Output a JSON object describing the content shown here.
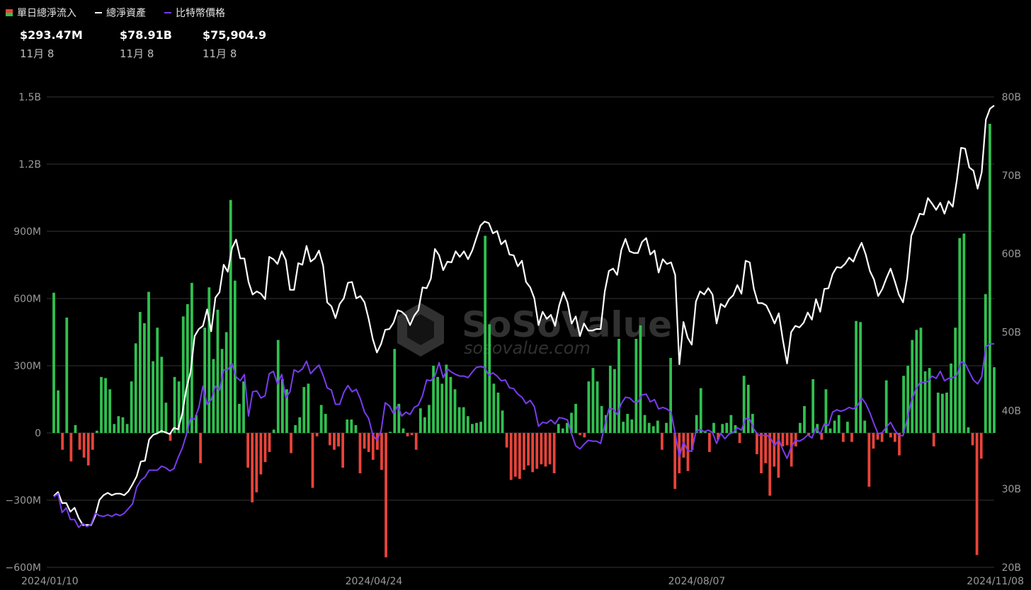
{
  "legend": [
    {
      "label": "單日總淨流入",
      "icon": "up-down-bar-icon",
      "color_up": "#31c04f",
      "color_down": "#e8443a"
    },
    {
      "label": "總淨資產",
      "icon": "line-icon",
      "color": "#ffffff"
    },
    {
      "label": "比特幣價格",
      "icon": "line-icon",
      "color": "#7a3cf0"
    }
  ],
  "stats": [
    {
      "value": "$293.47M",
      "date": "11月 8"
    },
    {
      "value": "$78.91B",
      "date": "11月 8"
    },
    {
      "value": "$75,904.9",
      "date": "11月 8"
    }
  ],
  "watermark": {
    "brand": "SoSoValue",
    "url": "sosovalue.com"
  },
  "chart_data": {
    "type": "bar",
    "colors": {
      "positive": "#31c04f",
      "negative": "#e8443a",
      "net_assets": "#ffffff",
      "btc_price": "#7a3cf0",
      "grid": "#333333"
    },
    "x_range": [
      "2024/01/10",
      "2024/11/08"
    ],
    "x_tick_labels": [
      "2024/01/10",
      "2024/04/24",
      "2024/08/07",
      "2024/11/08"
    ],
    "y_left": {
      "ticks": [
        -600,
        -300,
        0,
        300,
        600,
        900,
        1200,
        1500
      ],
      "tick_labels": [
        "−600M",
        "−300M",
        "0",
        "300M",
        "600M",
        "900M",
        "1.2B",
        "1.5B"
      ],
      "unit": "M USD",
      "range": [
        -600,
        1500
      ]
    },
    "y_right": {
      "ticks": [
        20,
        30,
        40,
        50,
        60,
        70,
        80
      ],
      "tick_labels": [
        "20B",
        "30B",
        "40B",
        "50B",
        "60B",
        "70B",
        "80B"
      ],
      "unit": "B USD",
      "range": [
        20,
        80
      ]
    },
    "grid": true,
    "legend_position": "top-left",
    "series": [
      {
        "name": "單日總淨流入",
        "type": "bar",
        "axis": "left",
        "values": [
          626,
          190,
          -75,
          515,
          -127,
          35,
          -75,
          -110,
          -145,
          -75,
          10,
          250,
          245,
          195,
          40,
          75,
          70,
          40,
          230,
          400,
          540,
          490,
          630,
          320,
          470,
          340,
          135,
          -35,
          250,
          230,
          520,
          575,
          670,
          80,
          -135,
          470,
          650,
          330,
          550,
          375,
          450,
          1040,
          680,
          130,
          230,
          -155,
          -310,
          -265,
          -185,
          -130,
          -85,
          15,
          415,
          240,
          195,
          -90,
          35,
          70,
          205,
          220,
          -245,
          -15,
          125,
          85,
          -55,
          -75,
          -60,
          -155,
          60,
          60,
          35,
          -180,
          -70,
          -85,
          -120,
          -75,
          -165,
          -555,
          5,
          375,
          130,
          20,
          -15,
          -10,
          -75,
          110,
          70,
          125,
          300,
          250,
          220,
          305,
          250,
          195,
          115,
          115,
          75,
          40,
          45,
          50,
          880,
          485,
          220,
          180,
          100,
          -65,
          -210,
          -195,
          -205,
          -165,
          -145,
          -175,
          -160,
          -140,
          -150,
          -140,
          -180,
          40,
          20,
          45,
          90,
          130,
          -10,
          -20,
          230,
          290,
          230,
          120,
          80,
          300,
          285,
          420,
          50,
          85,
          60,
          420,
          480,
          80,
          45,
          30,
          55,
          -75,
          45,
          335,
          -250,
          -180,
          -110,
          -170,
          -75,
          80,
          200,
          10,
          -85,
          45,
          -30,
          40,
          45,
          80,
          35,
          -45,
          255,
          215,
          85,
          -95,
          -180,
          -135,
          -280,
          -150,
          -200,
          -60,
          -55,
          -150,
          -60,
          45,
          120,
          -10,
          240,
          40,
          -30,
          195,
          20,
          55,
          80,
          -40,
          50,
          -40,
          500,
          495,
          55,
          -240,
          -70,
          -30,
          -40,
          235,
          -20,
          -40,
          -100,
          255,
          300,
          415,
          460,
          470,
          275,
          290,
          -60,
          180,
          175,
          180,
          310,
          470,
          870,
          890,
          25,
          -55,
          -545,
          -115,
          620,
          1380,
          293.47
        ]
      },
      {
        "name": "總淨資產",
        "type": "line",
        "axis": "right",
        "values": [
          29.1,
          29.6,
          28.2,
          28.2,
          27.1,
          27.6,
          26.3,
          25.4,
          25.4,
          25.4,
          26.6,
          28.6,
          29.2,
          29.5,
          29.2,
          29.4,
          29.4,
          29.2,
          29.7,
          30.6,
          31.6,
          33.5,
          33.6,
          36.3,
          36.9,
          37.1,
          37.4,
          37.2,
          37.0,
          37.8,
          37.6,
          39.6,
          42.8,
          44.9,
          49.5,
          50.4,
          50.8,
          52.9,
          50.1,
          54.4,
          55.1,
          58.6,
          57.7,
          60.7,
          61.8,
          59.4,
          59.4,
          56.4,
          54.8,
          55.2,
          54.9,
          54.2,
          59.6,
          59.3,
          58.7,
          60.3,
          59.2,
          55.4,
          55.4,
          58.8,
          58.6,
          61.0,
          59.0,
          59.4,
          60.4,
          58.5,
          53.8,
          53.3,
          51.8,
          53.6,
          54.3,
          56.3,
          56.4,
          54.3,
          54.6,
          53.8,
          51.7,
          49.1,
          47.4,
          48.5,
          50.3,
          50.4,
          51.2,
          52.8,
          52.6,
          52.1,
          50.9,
          52.1,
          52.8,
          55.7,
          55.6,
          56.8,
          60.6,
          59.8,
          57.9,
          59.0,
          58.9,
          60.3,
          59.6,
          60.3,
          59.3,
          60.4,
          62.0,
          63.6,
          64.1,
          63.9,
          62.6,
          62.9,
          61.2,
          61.7,
          59.9,
          59.8,
          58.4,
          59.1,
          56.4,
          55.7,
          54.3,
          50.9,
          52.6,
          51.7,
          52.2,
          50.8,
          53.4,
          55.1,
          53.8,
          51.1,
          52.0,
          49.5,
          51.1,
          50.2,
          50.2,
          50.4,
          50.4,
          55.2,
          57.8,
          58.1,
          57.3,
          60.5,
          61.9,
          60.3,
          60.1,
          60.1,
          61.5,
          62.0,
          59.9,
          60.4,
          57.6,
          59.3,
          58.7,
          58.9,
          57.3,
          45.9,
          51.3,
          49.3,
          48.4,
          53.9,
          55.2,
          54.8,
          55.6,
          54.8,
          51.1,
          53.6,
          53.2,
          54.2,
          54.7,
          56.0,
          54.9,
          59.1,
          58.9,
          55.5,
          53.7,
          53.7,
          53.4,
          52.3,
          51.1,
          52.4,
          49.0,
          46.0,
          50.0,
          50.8,
          50.6,
          51.2,
          52.5,
          51.6,
          54.2,
          52.6,
          55.5,
          55.6,
          57.4,
          58.3,
          58.2,
          58.7,
          59.5,
          59.0,
          60.3,
          61.4,
          59.9,
          57.8,
          56.7,
          54.6,
          55.5,
          56.9,
          58.1,
          56.5,
          54.8,
          53.8,
          56.9,
          62.3,
          63.6,
          65.1,
          65.0,
          67.1,
          66.4,
          65.6,
          66.5,
          65.1,
          66.7,
          66.0,
          69.4,
          73.5,
          73.4,
          71.0,
          70.6,
          68.3,
          70.4,
          77.1,
          78.5,
          78.91
        ]
      },
      {
        "name": "比特幣價格",
        "type": "line",
        "axis": "right",
        "values": [
          29.0,
          29.4,
          27.0,
          27.6,
          26.1,
          26.1,
          25.1,
          25.6,
          25.2,
          25.5,
          26.9,
          26.6,
          26.5,
          26.7,
          26.5,
          26.8,
          26.6,
          26.9,
          27.5,
          28.1,
          30.2,
          31.1,
          31.5,
          32.4,
          32.4,
          32.4,
          32.9,
          32.7,
          32.3,
          32.6,
          34.0,
          35.2,
          36.9,
          39.0,
          38.9,
          40.4,
          43.1,
          40.8,
          41.4,
          43.1,
          42.6,
          45.2,
          45.2,
          46.0,
          44.3,
          43.8,
          44.6,
          39.3,
          42.4,
          42.5,
          41.6,
          41.9,
          44.7,
          45.0,
          43.4,
          44.6,
          41.6,
          42.4,
          45.2,
          44.9,
          45.3,
          46.3,
          44.7,
          45.3,
          45.8,
          44.5,
          42.9,
          42.6,
          40.8,
          40.8,
          42.3,
          43.2,
          42.4,
          42.7,
          41.5,
          39.8,
          39.0,
          36.9,
          36.2,
          37.4,
          41.0,
          40.6,
          39.6,
          40.6,
          39.3,
          39.8,
          39.5,
          40.4,
          40.7,
          41.9,
          43.9,
          43.8,
          44.4,
          46.1,
          44.2,
          45.3,
          44.9,
          44.6,
          44.4,
          44.4,
          44.2,
          44.9,
          45.5,
          45.6,
          45.5,
          44.5,
          44.8,
          44.4,
          43.8,
          43.9,
          42.9,
          42.8,
          42.1,
          41.7,
          40.9,
          41.3,
          40.5,
          38.0,
          38.5,
          38.4,
          38.8,
          38.3,
          39.1,
          39.0,
          38.8,
          37.0,
          35.5,
          35.1,
          35.7,
          36.2,
          36.1,
          36.1,
          35.8,
          38.1,
          40.2,
          40.2,
          39.5,
          40.9,
          41.7,
          41.6,
          41.1,
          41.1,
          42.0,
          42.1,
          41.1,
          41.4,
          40.2,
          40.4,
          40.2,
          39.8,
          37.1,
          34.1,
          36.0,
          34.9,
          34.8,
          37.3,
          37.6,
          37.3,
          37.5,
          37.2,
          35.8,
          37.1,
          36.4,
          37.0,
          37.2,
          37.8,
          37.5,
          39.0,
          38.9,
          37.6,
          36.9,
          36.8,
          36.9,
          36.5,
          35.5,
          36.3,
          35.0,
          33.9,
          35.3,
          36.2,
          36.1,
          36.4,
          36.9,
          36.5,
          37.8,
          37.0,
          38.3,
          38.1,
          39.8,
          40.1,
          39.9,
          40.1,
          40.4,
          40.2,
          40.6,
          41.6,
          40.9,
          39.7,
          38.3,
          37.0,
          37.2,
          37.9,
          38.5,
          37.5,
          36.8,
          36.8,
          38.9,
          41.2,
          42.6,
          43.5,
          43.6,
          43.7,
          44.4,
          44.1,
          45.0,
          43.8,
          44.1,
          44.2,
          44.5,
          46.2,
          46.0,
          44.9,
          43.9,
          43.4,
          44.3,
          48.1,
          48.5,
          48.5
        ]
      }
    ]
  }
}
